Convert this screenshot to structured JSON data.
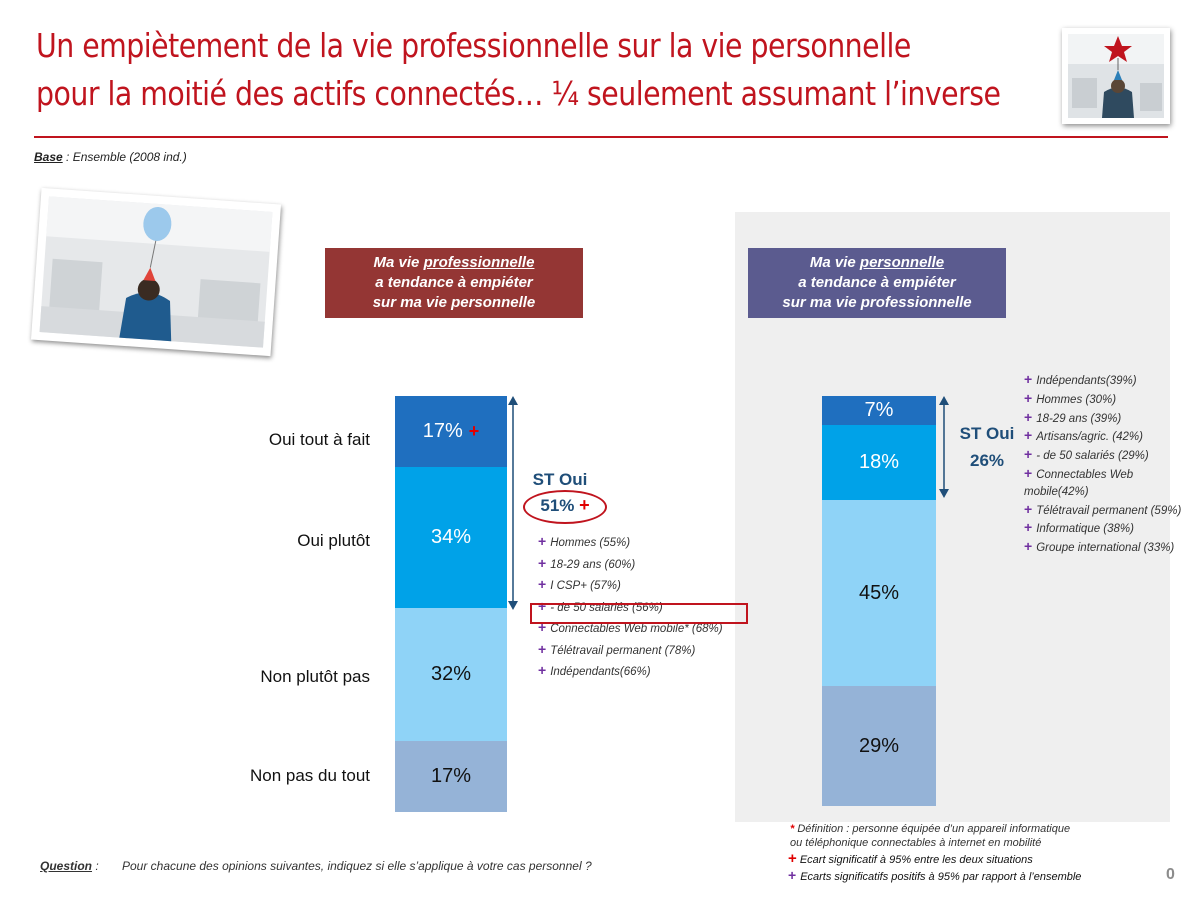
{
  "title": {
    "line1": "Un empiètement de la vie professionnelle sur la vie personnelle",
    "line2": "pour la moitié des actifs connectés… ¼ seulement assumant l’inverse"
  },
  "base": {
    "label": "Base",
    "text": " : Ensemble (2008 ind.)"
  },
  "colors": {
    "title": "#c0141e",
    "left_header": "#943634",
    "right_header": "#5b5b8f",
    "seg_oui_tout": "#1f6fbf",
    "seg_oui_plutot": "#00a2e8",
    "seg_non_plutot": "#8fd3f7",
    "seg_non_tout": "#95b3d7",
    "st": "#1f4e79",
    "plus_purple": "#7030a0",
    "plus_red": "#e00000"
  },
  "left_header": {
    "pre": "Ma vie ",
    "underlined": "professionnelle",
    "line2": "a tendance à empiéter",
    "line3": "sur ma vie personnelle"
  },
  "right_header": {
    "pre": "Ma vie ",
    "underlined": "personnelle",
    "line2": "a tendance à empiéter",
    "line3": "sur ma vie professionnelle"
  },
  "chart_data": {
    "type": "bar",
    "stacked": true,
    "categories": [
      "Oui tout à fait",
      "Oui plutôt",
      "Non plutôt pas",
      "Non pas du tout"
    ],
    "series": [
      {
        "values": [
          17,
          34,
          32,
          17
        ],
        "labels": [
          "17%",
          "34%",
          "32%",
          "17%"
        ],
        "st_oui_label": "ST Oui",
        "st_oui_value": "51%"
      },
      {
        "values": [
          7,
          18,
          45,
          29
        ],
        "labels": [
          "7%",
          "18%",
          "45%",
          "29%"
        ],
        "st_oui_label": "ST Oui",
        "st_oui_value": "26%"
      }
    ],
    "ylim": [
      0,
      100
    ]
  },
  "left_notes": [
    "Hommes (55%)",
    "18-29 ans (60%)",
    "I CSP+ (57%)",
    "- de 50 salariés (56%)",
    "Connectables Web mobile* (68%)",
    "Télétravail permanent (78%)",
    "Indépendants(66%)"
  ],
  "right_notes": [
    "Indépendants(39%)",
    "Hommes (30%)",
    "18-29 ans (39%)",
    "Artisans/agric. (42%)",
    "- de 50 salariés (29%)",
    "Connectables Web",
    "mobile(42%)",
    "Télétravail permanent (59%)",
    "Informatique (38%)",
    "Groupe international (33%)"
  ],
  "plus_symbol": "+",
  "definition": {
    "star": "*",
    "line1": " Définition : personne équipée d’un appareil informatique",
    "line2": "ou téléphonique connectables à internet en mobilité"
  },
  "legend": {
    "red": "Ecart significatif à 95% entre les deux situations",
    "purple": "Ecarts significatifs positifs à 95% par rapport à l’ensemble"
  },
  "question": {
    "label": "Question",
    "colon": " :",
    "text": "Pour chacune des opinions suivantes, indiquez si elle s’applique à votre cas personnel ?"
  },
  "page_number": "0"
}
